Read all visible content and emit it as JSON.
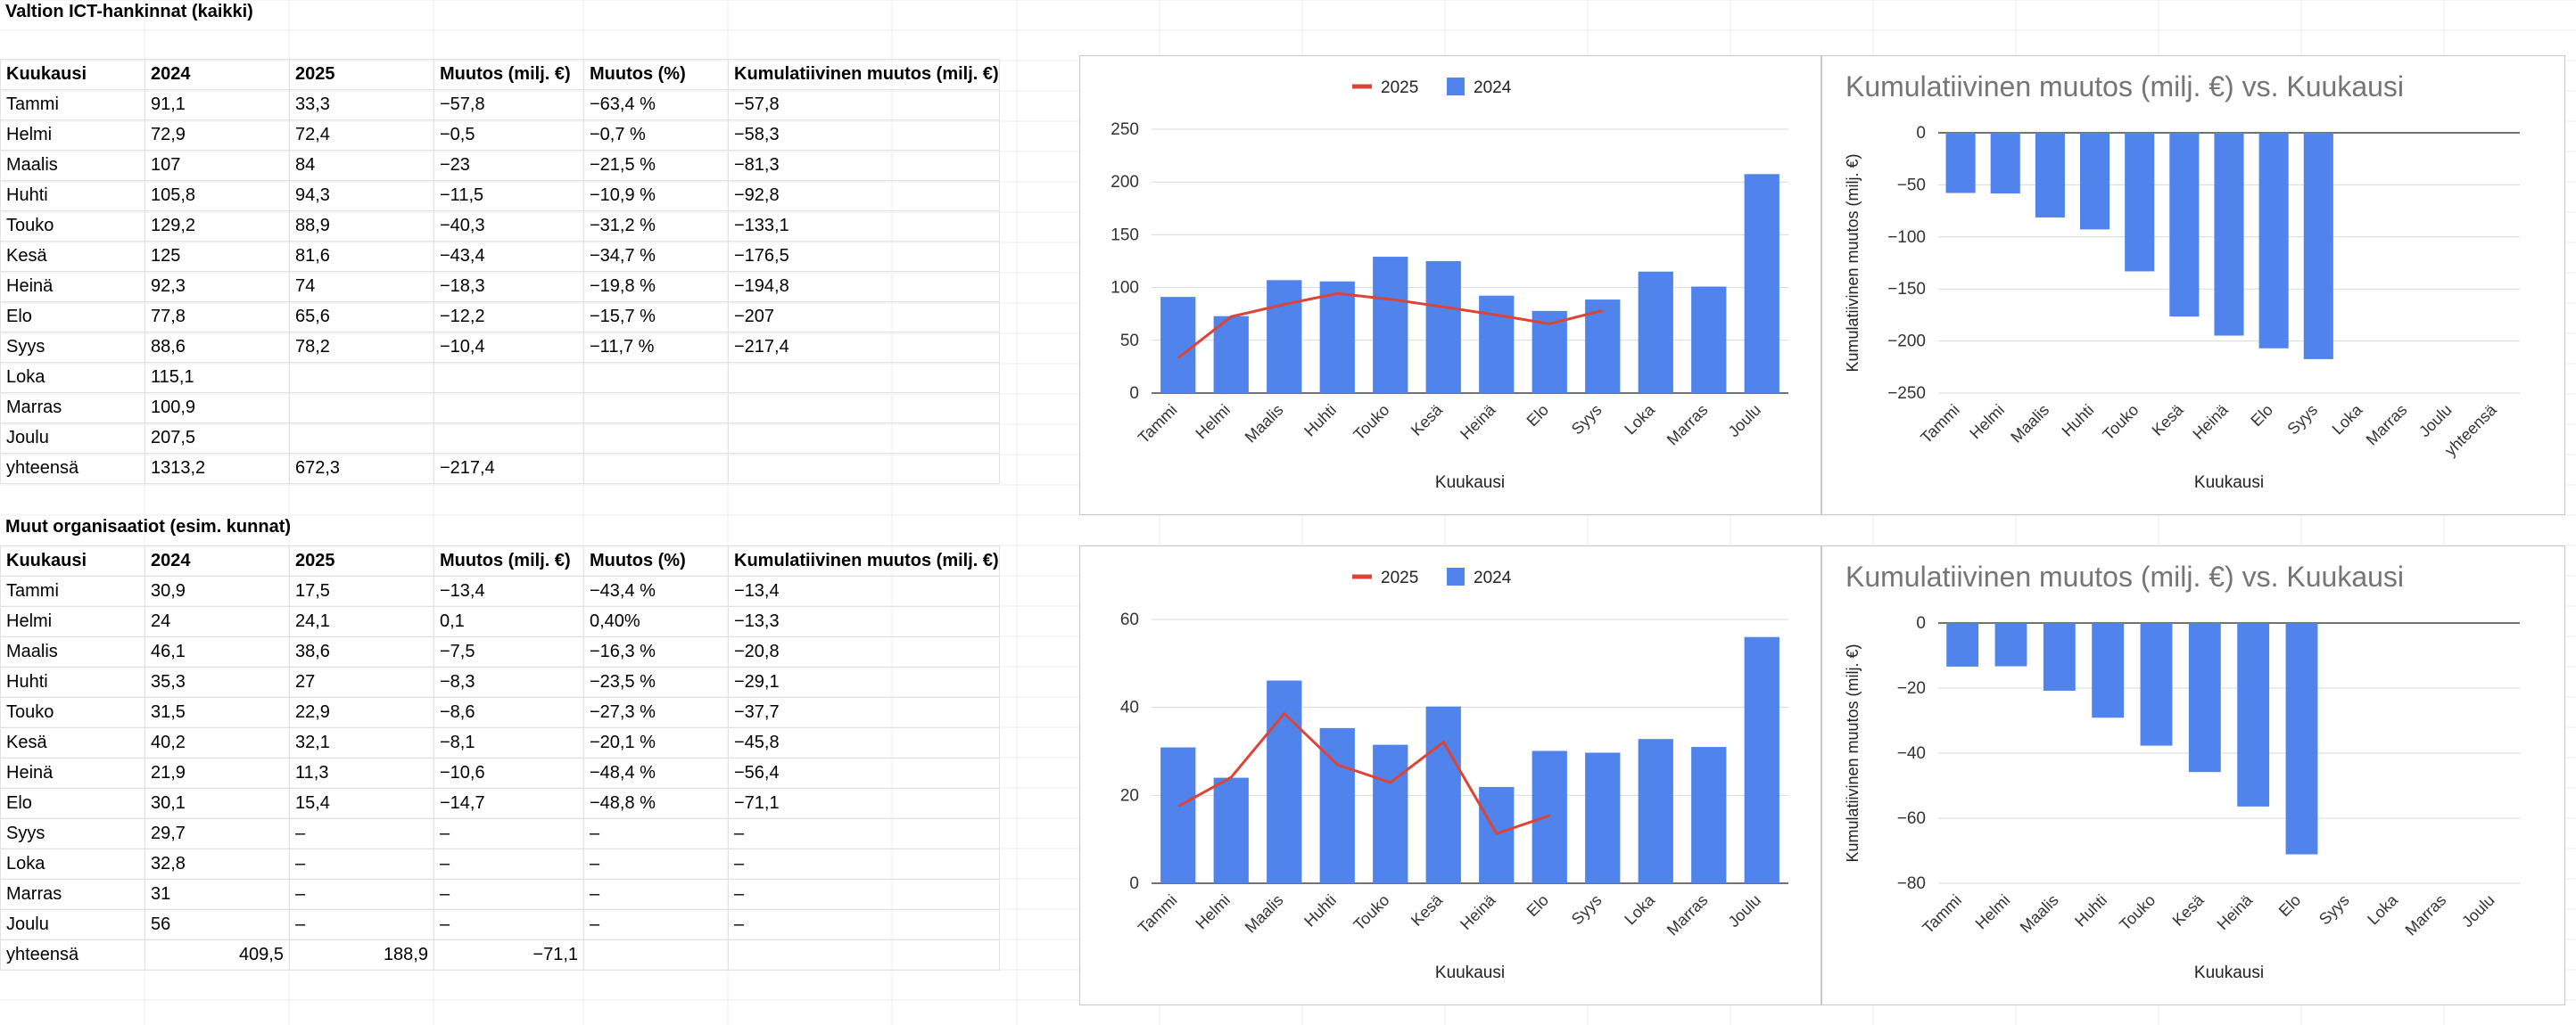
{
  "section1": {
    "title": "Valtion ICT-hankinnat (kaikki)",
    "headers": [
      "Kuukausi",
      "2024",
      "2025",
      "Muutos (milj. €)",
      "Muutos (%)",
      "Kumulatiivinen muutos (milj. €)"
    ],
    "rows": [
      [
        "Tammi",
        "91,1",
        "33,3",
        "−57,8",
        "−63,4 %",
        "−57,8"
      ],
      [
        "Helmi",
        "72,9",
        "72,4",
        "−0,5",
        "−0,7 %",
        "−58,3"
      ],
      [
        "Maalis",
        "107",
        "84",
        "−23",
        "−21,5 %",
        "−81,3"
      ],
      [
        "Huhti",
        "105,8",
        "94,3",
        "−11,5",
        "−10,9 %",
        "−92,8"
      ],
      [
        "Touko",
        "129,2",
        "88,9",
        "−40,3",
        "−31,2 %",
        "−133,1"
      ],
      [
        "Kesä",
        "125",
        "81,6",
        "−43,4",
        "−34,7 %",
        "−176,5"
      ],
      [
        "Heinä",
        "92,3",
        "74",
        "−18,3",
        "−19,8 %",
        "−194,8"
      ],
      [
        "Elo",
        "77,8",
        "65,6",
        "−12,2",
        "−15,7 %",
        "−207"
      ],
      [
        "Syys",
        "88,6",
        "78,2",
        "−10,4",
        "−11,7 %",
        "−217,4"
      ],
      [
        "Loka",
        "115,1",
        "",
        "",
        "",
        ""
      ],
      [
        "Marras",
        "100,9",
        "",
        "",
        "",
        ""
      ],
      [
        "Joulu",
        "207,5",
        "",
        "",
        "",
        ""
      ],
      [
        "yhteensä",
        "1313,2",
        "672,3",
        "−217,4",
        "",
        ""
      ]
    ]
  },
  "section2": {
    "title": "Muut organisaatiot (esim. kunnat)",
    "headers": [
      "Kuukausi",
      "2024",
      "2025",
      "Muutos (milj. €)",
      "Muutos (%)",
      "Kumulatiivinen muutos (milj. €)"
    ],
    "rows": [
      [
        "Tammi",
        "30,9",
        "17,5",
        "−13,4",
        "−43,4 %",
        "−13,4"
      ],
      [
        "Helmi",
        "24",
        "24,1",
        "0,1",
        "0,40%",
        "−13,3"
      ],
      [
        "Maalis",
        "46,1",
        "38,6",
        "−7,5",
        "−16,3 %",
        "−20,8"
      ],
      [
        "Huhti",
        "35,3",
        "27",
        "−8,3",
        "−23,5 %",
        "−29,1"
      ],
      [
        "Touko",
        "31,5",
        "22,9",
        "−8,6",
        "−27,3 %",
        "−37,7"
      ],
      [
        "Kesä",
        "40,2",
        "32,1",
        "−8,1",
        "−20,1 %",
        "−45,8"
      ],
      [
        "Heinä",
        "21,9",
        "11,3",
        "−10,6",
        "−48,4 %",
        "−56,4"
      ],
      [
        "Elo",
        "30,1",
        "15,4",
        "−14,7",
        "−48,8 %",
        "−71,1"
      ],
      [
        "Syys",
        "29,7",
        "–",
        "–",
        "–",
        "–"
      ],
      [
        "Loka",
        "32,8",
        "–",
        "–",
        "–",
        "–"
      ],
      [
        "Marras",
        "31",
        "–",
        "–",
        "–",
        "–"
      ],
      [
        "Joulu",
        "56",
        "–",
        "–",
        "–",
        "–"
      ]
    ],
    "total": [
      "yhteensä",
      "409,5",
      "188,9",
      "−71,1",
      "",
      ""
    ]
  },
  "colors": {
    "bar": "#5083ec",
    "line": "#db4437",
    "grid": "#d9d9d9",
    "axis": "#444444",
    "title": "#757575"
  },
  "chart_data": [
    {
      "type": "bar",
      "title": "",
      "xlabel": "Kuukausi",
      "ylabel": "",
      "ylim": [
        0,
        250
      ],
      "yticks": [
        0,
        50,
        100,
        150,
        200,
        250
      ],
      "categories": [
        "Tammi",
        "Helmi",
        "Maalis",
        "Huhti",
        "Touko",
        "Kesä",
        "Heinä",
        "Elo",
        "Syys",
        "Loka",
        "Marras",
        "Joulu"
      ],
      "legend": "top",
      "legend_entries": [
        "2025",
        "2024"
      ],
      "series": [
        {
          "name": "2024",
          "kind": "bar",
          "values": [
            91.1,
            72.9,
            107,
            105.8,
            129.2,
            125,
            92.3,
            77.8,
            88.6,
            115.1,
            100.9,
            207.5
          ]
        },
        {
          "name": "2025",
          "kind": "line",
          "values": [
            33.3,
            72.4,
            84,
            94.3,
            88.9,
            81.6,
            74,
            65.6,
            78.2,
            null,
            null,
            null
          ]
        }
      ]
    },
    {
      "type": "bar",
      "title": "Kumulatiivinen muutos (milj. €) vs. Kuukausi",
      "xlabel": "Kuukausi",
      "ylabel": "Kumulatiivinen muutos (milj. €)",
      "ylim": [
        -250,
        0
      ],
      "yticks": [
        0,
        -50,
        -100,
        -150,
        -200,
        -250
      ],
      "categories": [
        "Tammi",
        "Helmi",
        "Maalis",
        "Huhti",
        "Touko",
        "Kesä",
        "Heinä",
        "Elo",
        "Syys",
        "Loka",
        "Marras",
        "Joulu",
        "yhteensä"
      ],
      "series": [
        {
          "name": "Kumulatiivinen muutos (milj. €)",
          "kind": "bar",
          "values": [
            -57.8,
            -58.3,
            -81.3,
            -92.8,
            -133.1,
            -176.5,
            -194.8,
            -207,
            -217.4,
            null,
            null,
            null,
            null
          ]
        }
      ]
    },
    {
      "type": "bar",
      "title": "",
      "xlabel": "Kuukausi",
      "ylabel": "",
      "ylim": [
        0,
        60
      ],
      "yticks": [
        0,
        20,
        40,
        60
      ],
      "categories": [
        "Tammi",
        "Helmi",
        "Maalis",
        "Huhti",
        "Touko",
        "Kesä",
        "Heinä",
        "Elo",
        "Syys",
        "Loka",
        "Marras",
        "Joulu"
      ],
      "legend": "top",
      "legend_entries": [
        "2025",
        "2024"
      ],
      "series": [
        {
          "name": "2024",
          "kind": "bar",
          "values": [
            30.9,
            24,
            46.1,
            35.3,
            31.5,
            40.2,
            21.9,
            30.1,
            29.7,
            32.8,
            31,
            56
          ]
        },
        {
          "name": "2025",
          "kind": "line",
          "values": [
            17.5,
            24.1,
            38.6,
            27,
            22.9,
            32.1,
            11.3,
            15.4,
            null,
            null,
            null,
            null
          ]
        }
      ]
    },
    {
      "type": "bar",
      "title": "Kumulatiivinen muutos (milj. €) vs. Kuukausi",
      "xlabel": "Kuukausi",
      "ylabel": "Kumulatiivinen muutos (milj. €)",
      "ylim": [
        -80,
        0
      ],
      "yticks": [
        0,
        -20,
        -40,
        -60,
        -80
      ],
      "categories": [
        "Tammi",
        "Helmi",
        "Maalis",
        "Huhti",
        "Touko",
        "Kesä",
        "Heinä",
        "Elo",
        "Syys",
        "Loka",
        "Marras",
        "Joulu"
      ],
      "series": [
        {
          "name": "Kumulatiivinen muutos (milj. €)",
          "kind": "bar",
          "values": [
            -13.4,
            -13.3,
            -20.8,
            -29.1,
            -37.7,
            -45.8,
            -56.4,
            -71.1,
            null,
            null,
            null,
            null
          ]
        }
      ]
    }
  ]
}
